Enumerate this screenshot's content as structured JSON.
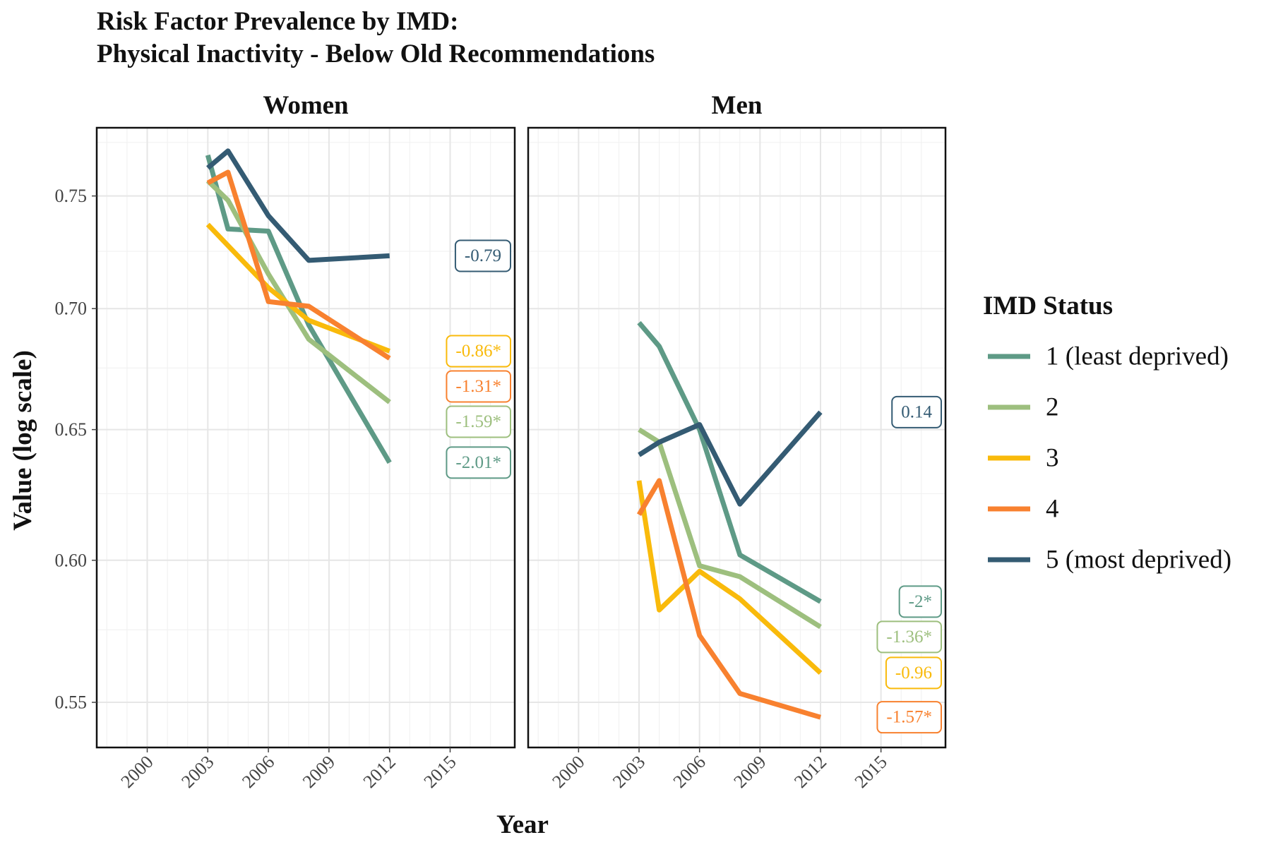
{
  "chart_data": {
    "type": "line",
    "title": "Risk Factor Prevalence by IMD:",
    "subtitle": "Physical Inactivity - Below Old Recommendations",
    "xlabel": "Year",
    "ylabel": "Value (log scale)",
    "y_scale": "log",
    "ylim": [
      0.535,
      0.782
    ],
    "xlim": [
      1997.5,
      2018.2
    ],
    "x_ticks": [
      "2000",
      "2003",
      "2006",
      "2009",
      "2012",
      "2015"
    ],
    "y_ticks": [
      "0.55",
      "0.60",
      "0.65",
      "0.70",
      "0.75"
    ],
    "grid": true,
    "legend": {
      "title": "IMD Status",
      "position": "right",
      "entries": [
        "1 (least deprived)",
        "2",
        "3",
        "4",
        "5 (most deprived)"
      ]
    },
    "colors": {
      "1 (least deprived)": "#5e9a86",
      "2": "#9dbf7e",
      "3": "#f9ba0b",
      "4": "#f8812f",
      "5 (most deprived)": "#345b73"
    },
    "panels": [
      {
        "name": "Women",
        "series": [
          {
            "name": "1 (least deprived)",
            "x": [
              2003,
              2004,
              2006,
              2008,
              2012
            ],
            "y": [
              0.769,
              0.735,
              0.734,
              0.693,
              0.637
            ],
            "label": "-2.01*"
          },
          {
            "name": "2",
            "x": [
              2003,
              2004,
              2006,
              2008,
              2012
            ],
            "y": [
              0.757,
              0.748,
              0.715,
              0.687,
              0.661
            ],
            "label": "-1.59*"
          },
          {
            "name": "3",
            "x": [
              2003,
              2006,
              2008,
              2012
            ],
            "y": [
              0.737,
              0.709,
              0.695,
              0.682
            ],
            "label": "-0.86*"
          },
          {
            "name": "4",
            "x": [
              2003,
              2004,
              2006,
              2008,
              2012
            ],
            "y": [
              0.756,
              0.761,
              0.703,
              0.701,
              0.679
            ],
            "label": "-1.31*"
          },
          {
            "name": "5 (most deprived)",
            "x": [
              2003,
              2004,
              2006,
              2008,
              2012
            ],
            "y": [
              0.763,
              0.771,
              0.741,
              0.721,
              0.723
            ],
            "label": "-0.79"
          }
        ]
      },
      {
        "name": "Men",
        "series": [
          {
            "name": "1 (least deprived)",
            "x": [
              2003,
              2004,
              2006,
              2008,
              2012
            ],
            "y": [
              0.694,
              0.684,
              0.65,
              0.602,
              0.585
            ],
            "label": "-2*"
          },
          {
            "name": "2",
            "x": [
              2003,
              2004,
              2006,
              2008,
              2012
            ],
            "y": [
              0.65,
              0.645,
              0.598,
              0.594,
              0.576
            ],
            "label": "-1.36*"
          },
          {
            "name": "3",
            "x": [
              2003,
              2004,
              2006,
              2008,
              2012
            ],
            "y": [
              0.63,
              0.582,
              0.596,
              0.586,
              0.56
            ],
            "label": "-0.96"
          },
          {
            "name": "4",
            "x": [
              2003,
              2004,
              2006,
              2008,
              2012
            ],
            "y": [
              0.617,
              0.63,
              0.573,
              0.553,
              0.545
            ],
            "label": "-1.57*"
          },
          {
            "name": "5 (most deprived)",
            "x": [
              2003,
              2004,
              2006,
              2008,
              2012
            ],
            "y": [
              0.64,
              0.645,
              0.652,
              0.621,
              0.657
            ],
            "label": "0.14"
          }
        ]
      }
    ]
  }
}
